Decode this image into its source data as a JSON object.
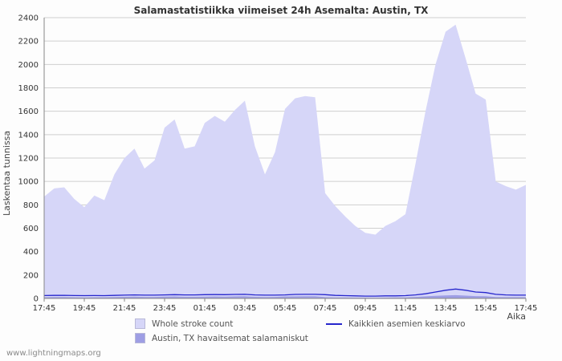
{
  "branding": {
    "site": "www.lightningmaps.org"
  },
  "chart_data": {
    "type": "area",
    "title": "Salamastatistiikka viimeiset 24h Asemalta: Austin, TX",
    "xlabel": "Aika",
    "ylabel": "Laskentaa tunnissa",
    "ylim": [
      0,
      2400
    ],
    "ytick_step": 200,
    "grid": "horizontal",
    "legend_position": "bottom",
    "x_start": "17:45",
    "x_span_hours": 24,
    "sample_interval_minutes": 30,
    "x_ticks": [
      "17:45",
      "19:45",
      "21:45",
      "23:45",
      "01:45",
      "03:45",
      "05:45",
      "07:45",
      "09:45",
      "11:45",
      "13:45",
      "15:45",
      "17:45"
    ],
    "colors": {
      "grid": "#cfcfcf",
      "axis": "#888888",
      "tick_text": "#333333"
    },
    "series": [
      {
        "name": "Whole stroke count",
        "type": "area",
        "color": "#d6d6f8",
        "values": [
          870,
          940,
          950,
          850,
          780,
          880,
          840,
          1060,
          1200,
          1280,
          1110,
          1180,
          1460,
          1530,
          1280,
          1300,
          1500,
          1560,
          1510,
          1610,
          1690,
          1300,
          1060,
          1250,
          1620,
          1710,
          1730,
          1720,
          900,
          790,
          700,
          620,
          560,
          545,
          620,
          660,
          720,
          1150,
          1600,
          2000,
          2280,
          2340,
          2050,
          1750,
          1700,
          1000,
          960,
          930,
          970
        ]
      },
      {
        "name": "Austin, TX havaitsemat salamaniskut",
        "type": "area",
        "color": "#9e9ee4",
        "values": [
          10,
          12,
          12,
          10,
          9,
          10,
          10,
          12,
          14,
          15,
          13,
          13,
          16,
          17,
          14,
          14,
          16,
          17,
          16,
          18,
          19,
          14,
          12,
          13,
          17,
          18,
          19,
          19,
          11,
          9,
          8,
          7,
          7,
          6,
          7,
          8,
          9,
          13,
          18,
          22,
          26,
          28,
          24,
          20,
          19,
          12,
          11,
          11,
          11
        ]
      },
      {
        "name": "Kaikkien asemien keskiarvo",
        "type": "line",
        "color": "#2626cc",
        "values": [
          25,
          26,
          27,
          25,
          24,
          25,
          24,
          26,
          28,
          30,
          28,
          28,
          30,
          32,
          30,
          30,
          32,
          33,
          32,
          34,
          35,
          30,
          28,
          28,
          30,
          34,
          35,
          35,
          32,
          26,
          24,
          22,
          20,
          20,
          22,
          22,
          24,
          30,
          40,
          55,
          70,
          80,
          70,
          55,
          50,
          35,
          30,
          28,
          28
        ]
      }
    ]
  }
}
